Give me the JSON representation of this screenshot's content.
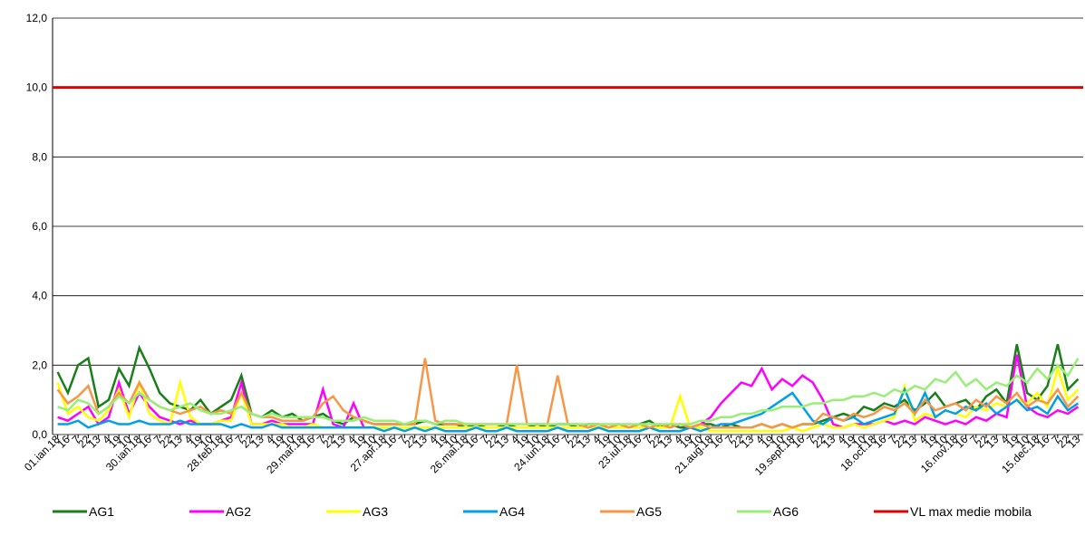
{
  "chart_data": {
    "type": "line",
    "categories": [
      "01.ian.18",
      "16",
      "7",
      "22",
      "13",
      "4",
      "19",
      "10",
      "30.ian.18",
      "16",
      "7",
      "22",
      "13",
      "4",
      "19",
      "10",
      "28.feb.18",
      "16",
      "7",
      "22",
      "13",
      "4",
      "19",
      "10",
      "29.mar.18",
      "16",
      "7",
      "22",
      "13",
      "4",
      "19",
      "10",
      "27.apr.18",
      "16",
      "7",
      "22",
      "13",
      "4",
      "19",
      "10",
      "26.mai.18",
      "16",
      "7",
      "22",
      "13",
      "4",
      "19",
      "10",
      "24.iun.18",
      "16",
      "7",
      "22",
      "13",
      "4",
      "19",
      "10",
      "23.iul.18",
      "16",
      "7",
      "22",
      "13",
      "4",
      "19",
      "10",
      "21.aug.18",
      "16",
      "7",
      "22",
      "13",
      "4",
      "19",
      "10",
      "19.sept.18",
      "16",
      "7",
      "22",
      "13",
      "4",
      "19",
      "10",
      "18.oct.18",
      "16",
      "7",
      "22",
      "13",
      "4",
      "19",
      "10",
      "16.nov.18",
      "16",
      "7",
      "22",
      "13",
      "4",
      "19",
      "10",
      "15.dec.18",
      "16",
      "7",
      "22",
      "13"
    ],
    "series": [
      {
        "name": "AG1",
        "color": "#1a7f1a",
        "values": [
          1.8,
          1.2,
          2.0,
          2.2,
          0.8,
          1.0,
          1.9,
          1.4,
          2.5,
          1.9,
          1.2,
          0.9,
          0.8,
          0.7,
          1.0,
          0.6,
          0.8,
          1.0,
          1.7,
          0.6,
          0.5,
          0.7,
          0.5,
          0.6,
          0.4,
          0.5,
          0.6,
          0.4,
          0.3,
          0.5,
          0.4,
          0.3,
          0.3,
          0.3,
          0.3,
          0.3,
          0.4,
          0.3,
          0.3,
          0.3,
          0.2,
          0.3,
          0.2,
          0.2,
          0.3,
          0.2,
          0.2,
          0.3,
          0.2,
          0.3,
          0.3,
          0.2,
          0.3,
          0.3,
          0.2,
          0.3,
          0.2,
          0.3,
          0.4,
          0.2,
          0.3,
          0.2,
          0.2,
          0.3,
          0.3,
          0.2,
          0.3,
          0.2,
          0.2,
          0.3,
          0.2,
          0.3,
          0.2,
          0.3,
          0.3,
          0.4,
          0.5,
          0.6,
          0.5,
          0.8,
          0.7,
          0.9,
          0.8,
          1.0,
          0.7,
          0.9,
          1.2,
          0.8,
          0.9,
          1.0,
          0.7,
          1.1,
          1.3,
          0.9,
          2.6,
          1.2,
          1.0,
          1.4,
          2.6,
          1.3,
          1.6
        ]
      },
      {
        "name": "AG2",
        "color": "#ff00ff",
        "values": [
          0.5,
          0.4,
          0.6,
          0.8,
          0.3,
          0.5,
          1.5,
          0.6,
          1.2,
          0.8,
          0.5,
          0.4,
          0.3,
          0.4,
          0.3,
          0.3,
          0.4,
          0.5,
          1.5,
          0.3,
          0.3,
          0.4,
          0.3,
          0.3,
          0.3,
          0.3,
          1.3,
          0.3,
          0.2,
          0.9,
          0.2,
          0.2,
          0.2,
          0.2,
          0.2,
          0.2,
          0.2,
          0.2,
          0.2,
          0.2,
          0.2,
          0.2,
          0.2,
          0.2,
          0.2,
          0.2,
          0.2,
          0.2,
          0.2,
          0.2,
          0.2,
          0.2,
          0.2,
          0.2,
          0.2,
          0.2,
          0.2,
          0.2,
          0.2,
          0.2,
          0.2,
          0.3,
          0.2,
          0.3,
          0.5,
          0.9,
          1.2,
          1.5,
          1.4,
          1.9,
          1.3,
          1.6,
          1.4,
          1.7,
          1.5,
          1.0,
          0.3,
          0.2,
          0.3,
          0.3,
          0.3,
          0.4,
          0.3,
          0.4,
          0.3,
          0.5,
          0.4,
          0.3,
          0.4,
          0.3,
          0.5,
          0.4,
          0.6,
          0.5,
          2.3,
          0.8,
          0.6,
          0.5,
          0.7,
          0.6,
          0.8
        ]
      },
      {
        "name": "AG3",
        "color": "#ffff00",
        "values": [
          1.5,
          0.6,
          0.8,
          0.5,
          0.4,
          0.7,
          1.3,
          0.5,
          1.5,
          0.6,
          0.4,
          0.3,
          1.5,
          0.5,
          0.3,
          0.3,
          0.4,
          0.4,
          1.2,
          0.3,
          0.3,
          0.3,
          0.3,
          0.2,
          0.2,
          0.3,
          0.2,
          0.2,
          0.2,
          0.2,
          0.2,
          0.2,
          0.2,
          0.2,
          0.2,
          0.2,
          0.2,
          0.2,
          0.2,
          0.2,
          0.2,
          0.2,
          0.2,
          0.2,
          0.2,
          0.2,
          0.2,
          0.2,
          0.2,
          0.2,
          0.2,
          0.2,
          0.2,
          0.2,
          0.2,
          0.2,
          0.2,
          0.2,
          0.2,
          0.2,
          0.2,
          1.1,
          0.2,
          0.2,
          0.1,
          0.1,
          0.1,
          0.1,
          0.1,
          0.1,
          0.1,
          0.1,
          0.2,
          0.1,
          0.2,
          0.3,
          0.2,
          0.2,
          0.3,
          0.2,
          0.3,
          0.4,
          0.5,
          1.4,
          0.4,
          0.6,
          0.5,
          0.7,
          0.6,
          0.5,
          0.8,
          0.7,
          0.9,
          0.8,
          1.0,
          0.9,
          1.2,
          0.8,
          1.9,
          1.0,
          1.3
        ]
      },
      {
        "name": "AG4",
        "color": "#00a0e6",
        "values": [
          0.3,
          0.3,
          0.4,
          0.2,
          0.3,
          0.4,
          0.3,
          0.3,
          0.4,
          0.3,
          0.3,
          0.3,
          0.4,
          0.3,
          0.3,
          0.3,
          0.3,
          0.2,
          0.3,
          0.2,
          0.2,
          0.3,
          0.2,
          0.2,
          0.2,
          0.2,
          0.2,
          0.2,
          0.2,
          0.2,
          0.2,
          0.2,
          0.1,
          0.2,
          0.1,
          0.2,
          0.1,
          0.2,
          0.1,
          0.1,
          0.1,
          0.2,
          0.1,
          0.1,
          0.2,
          0.1,
          0.1,
          0.1,
          0.1,
          0.2,
          0.1,
          0.1,
          0.1,
          0.2,
          0.1,
          0.1,
          0.1,
          0.1,
          0.2,
          0.1,
          0.1,
          0.1,
          0.2,
          0.1,
          0.2,
          0.3,
          0.3,
          0.4,
          0.5,
          0.6,
          0.8,
          1.0,
          1.2,
          0.8,
          0.4,
          0.3,
          0.5,
          0.4,
          0.5,
          0.3,
          0.4,
          0.5,
          0.6,
          1.3,
          0.6,
          1.2,
          0.5,
          0.7,
          0.6,
          0.8,
          0.7,
          0.9,
          0.6,
          0.8,
          1.0,
          0.7,
          0.8,
          0.6,
          1.1,
          0.7,
          0.9
        ]
      },
      {
        "name": "AG5",
        "color": "#f79646",
        "values": [
          1.3,
          0.9,
          1.1,
          1.4,
          0.6,
          0.8,
          1.2,
          0.9,
          1.5,
          1.0,
          0.8,
          0.7,
          0.6,
          0.7,
          0.8,
          0.6,
          0.7,
          0.6,
          1.2,
          0.6,
          0.5,
          0.5,
          0.4,
          0.4,
          0.4,
          0.5,
          0.9,
          1.1,
          0.7,
          0.5,
          0.4,
          0.3,
          0.3,
          0.3,
          0.3,
          0.3,
          2.2,
          0.4,
          0.3,
          0.3,
          0.3,
          0.3,
          0.3,
          0.3,
          0.3,
          2.0,
          0.3,
          0.3,
          0.3,
          1.7,
          0.3,
          0.3,
          0.2,
          0.3,
          0.2,
          0.3,
          0.2,
          0.3,
          0.2,
          0.3,
          0.2,
          0.3,
          0.2,
          0.3,
          0.2,
          0.2,
          0.2,
          0.2,
          0.2,
          0.3,
          0.2,
          0.3,
          0.2,
          0.3,
          0.3,
          0.6,
          0.5,
          0.4,
          0.6,
          0.5,
          0.6,
          0.8,
          0.7,
          0.9,
          0.6,
          1.0,
          0.7,
          0.8,
          0.9,
          0.7,
          1.0,
          0.8,
          1.1,
          0.9,
          1.2,
          0.8,
          1.0,
          0.9,
          1.3,
          0.8,
          1.1
        ]
      },
      {
        "name": "AG6",
        "color": "#99ee77",
        "values": [
          0.8,
          0.7,
          1.0,
          0.9,
          0.6,
          0.8,
          1.1,
          0.9,
          1.2,
          1.0,
          0.8,
          0.7,
          0.8,
          0.9,
          0.7,
          0.6,
          0.6,
          0.7,
          0.8,
          0.6,
          0.5,
          0.6,
          0.5,
          0.5,
          0.5,
          0.5,
          0.5,
          0.4,
          0.4,
          0.4,
          0.5,
          0.4,
          0.4,
          0.4,
          0.3,
          0.4,
          0.4,
          0.3,
          0.4,
          0.4,
          0.3,
          0.3,
          0.3,
          0.3,
          0.3,
          0.3,
          0.3,
          0.3,
          0.3,
          0.3,
          0.3,
          0.3,
          0.3,
          0.3,
          0.3,
          0.3,
          0.3,
          0.3,
          0.3,
          0.3,
          0.3,
          0.3,
          0.3,
          0.4,
          0.4,
          0.5,
          0.5,
          0.6,
          0.6,
          0.7,
          0.7,
          0.8,
          0.8,
          0.8,
          0.9,
          0.9,
          1.0,
          1.0,
          1.1,
          1.1,
          1.2,
          1.1,
          1.3,
          1.2,
          1.4,
          1.3,
          1.6,
          1.5,
          1.8,
          1.4,
          1.6,
          1.3,
          1.5,
          1.4,
          1.7,
          1.5,
          1.9,
          1.6,
          2.0,
          1.7,
          2.2
        ]
      }
    ],
    "limit": {
      "name": "VL max medie mobila",
      "value": 10,
      "color": "#e00000"
    },
    "ylim": [
      0,
      12
    ],
    "yticks": [
      {
        "value": 0,
        "label": "0,0"
      },
      {
        "value": 2,
        "label": "2,0"
      },
      {
        "value": 4,
        "label": "4,0"
      },
      {
        "value": 6,
        "label": "6,0"
      },
      {
        "value": 8,
        "label": "8,0"
      },
      {
        "value": 10,
        "label": "10,0"
      },
      {
        "value": 12,
        "label": "12,0"
      }
    ],
    "grid": true,
    "legend": "bottom"
  }
}
